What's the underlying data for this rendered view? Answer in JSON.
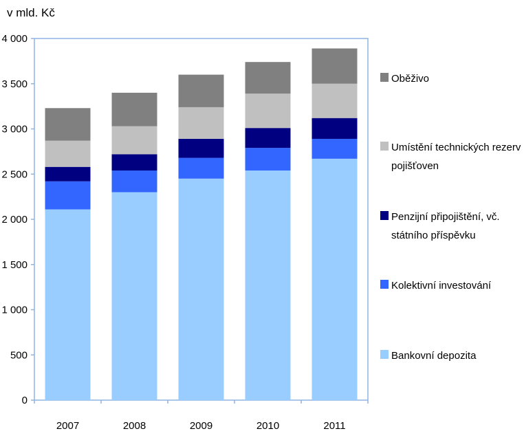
{
  "chart_data": {
    "type": "bar",
    "stacked": true,
    "unit_label": "v mld. Kč",
    "categories": [
      "2007",
      "2008",
      "2009",
      "2010",
      "2011"
    ],
    "ylim": [
      0,
      4000
    ],
    "yticks": [
      0,
      500,
      1000,
      1500,
      2000,
      2500,
      3000,
      3500,
      4000
    ],
    "ytick_labels": [
      "0",
      "500",
      "1 000",
      "1 500",
      "2 000",
      "2 500",
      "3 000",
      "3 500",
      "4 000"
    ],
    "series": [
      {
        "name": "Bankovní depozita",
        "color": "#99ccff",
        "values": [
          2110,
          2300,
          2450,
          2540,
          2670
        ]
      },
      {
        "name": "Kolektivní investování",
        "color": "#3366ff",
        "values": [
          310,
          240,
          230,
          250,
          220
        ]
      },
      {
        "name": "Penzijní připojištění, vč. státního příspěvku",
        "color": "#000080",
        "values": [
          160,
          180,
          210,
          220,
          230
        ]
      },
      {
        "name": "Umístění technických rezerv pojišťoven",
        "color": "#c0c0c0",
        "values": [
          290,
          310,
          350,
          380,
          380
        ]
      },
      {
        "name": "Oběživo",
        "color": "#808080",
        "values": [
          360,
          370,
          360,
          350,
          390
        ]
      }
    ],
    "legend_order": [
      4,
      3,
      2,
      1,
      0
    ],
    "legend_lines": [
      [
        "Oběživo"
      ],
      [
        "Umístění technických rezerv",
        "pojišťoven"
      ],
      [
        "Penzijní připojištění, vč.",
        "státního příspěvku"
      ],
      [
        "Kolektivní investování"
      ],
      [
        "Bankovní depozita"
      ]
    ],
    "legend_position": "right"
  }
}
